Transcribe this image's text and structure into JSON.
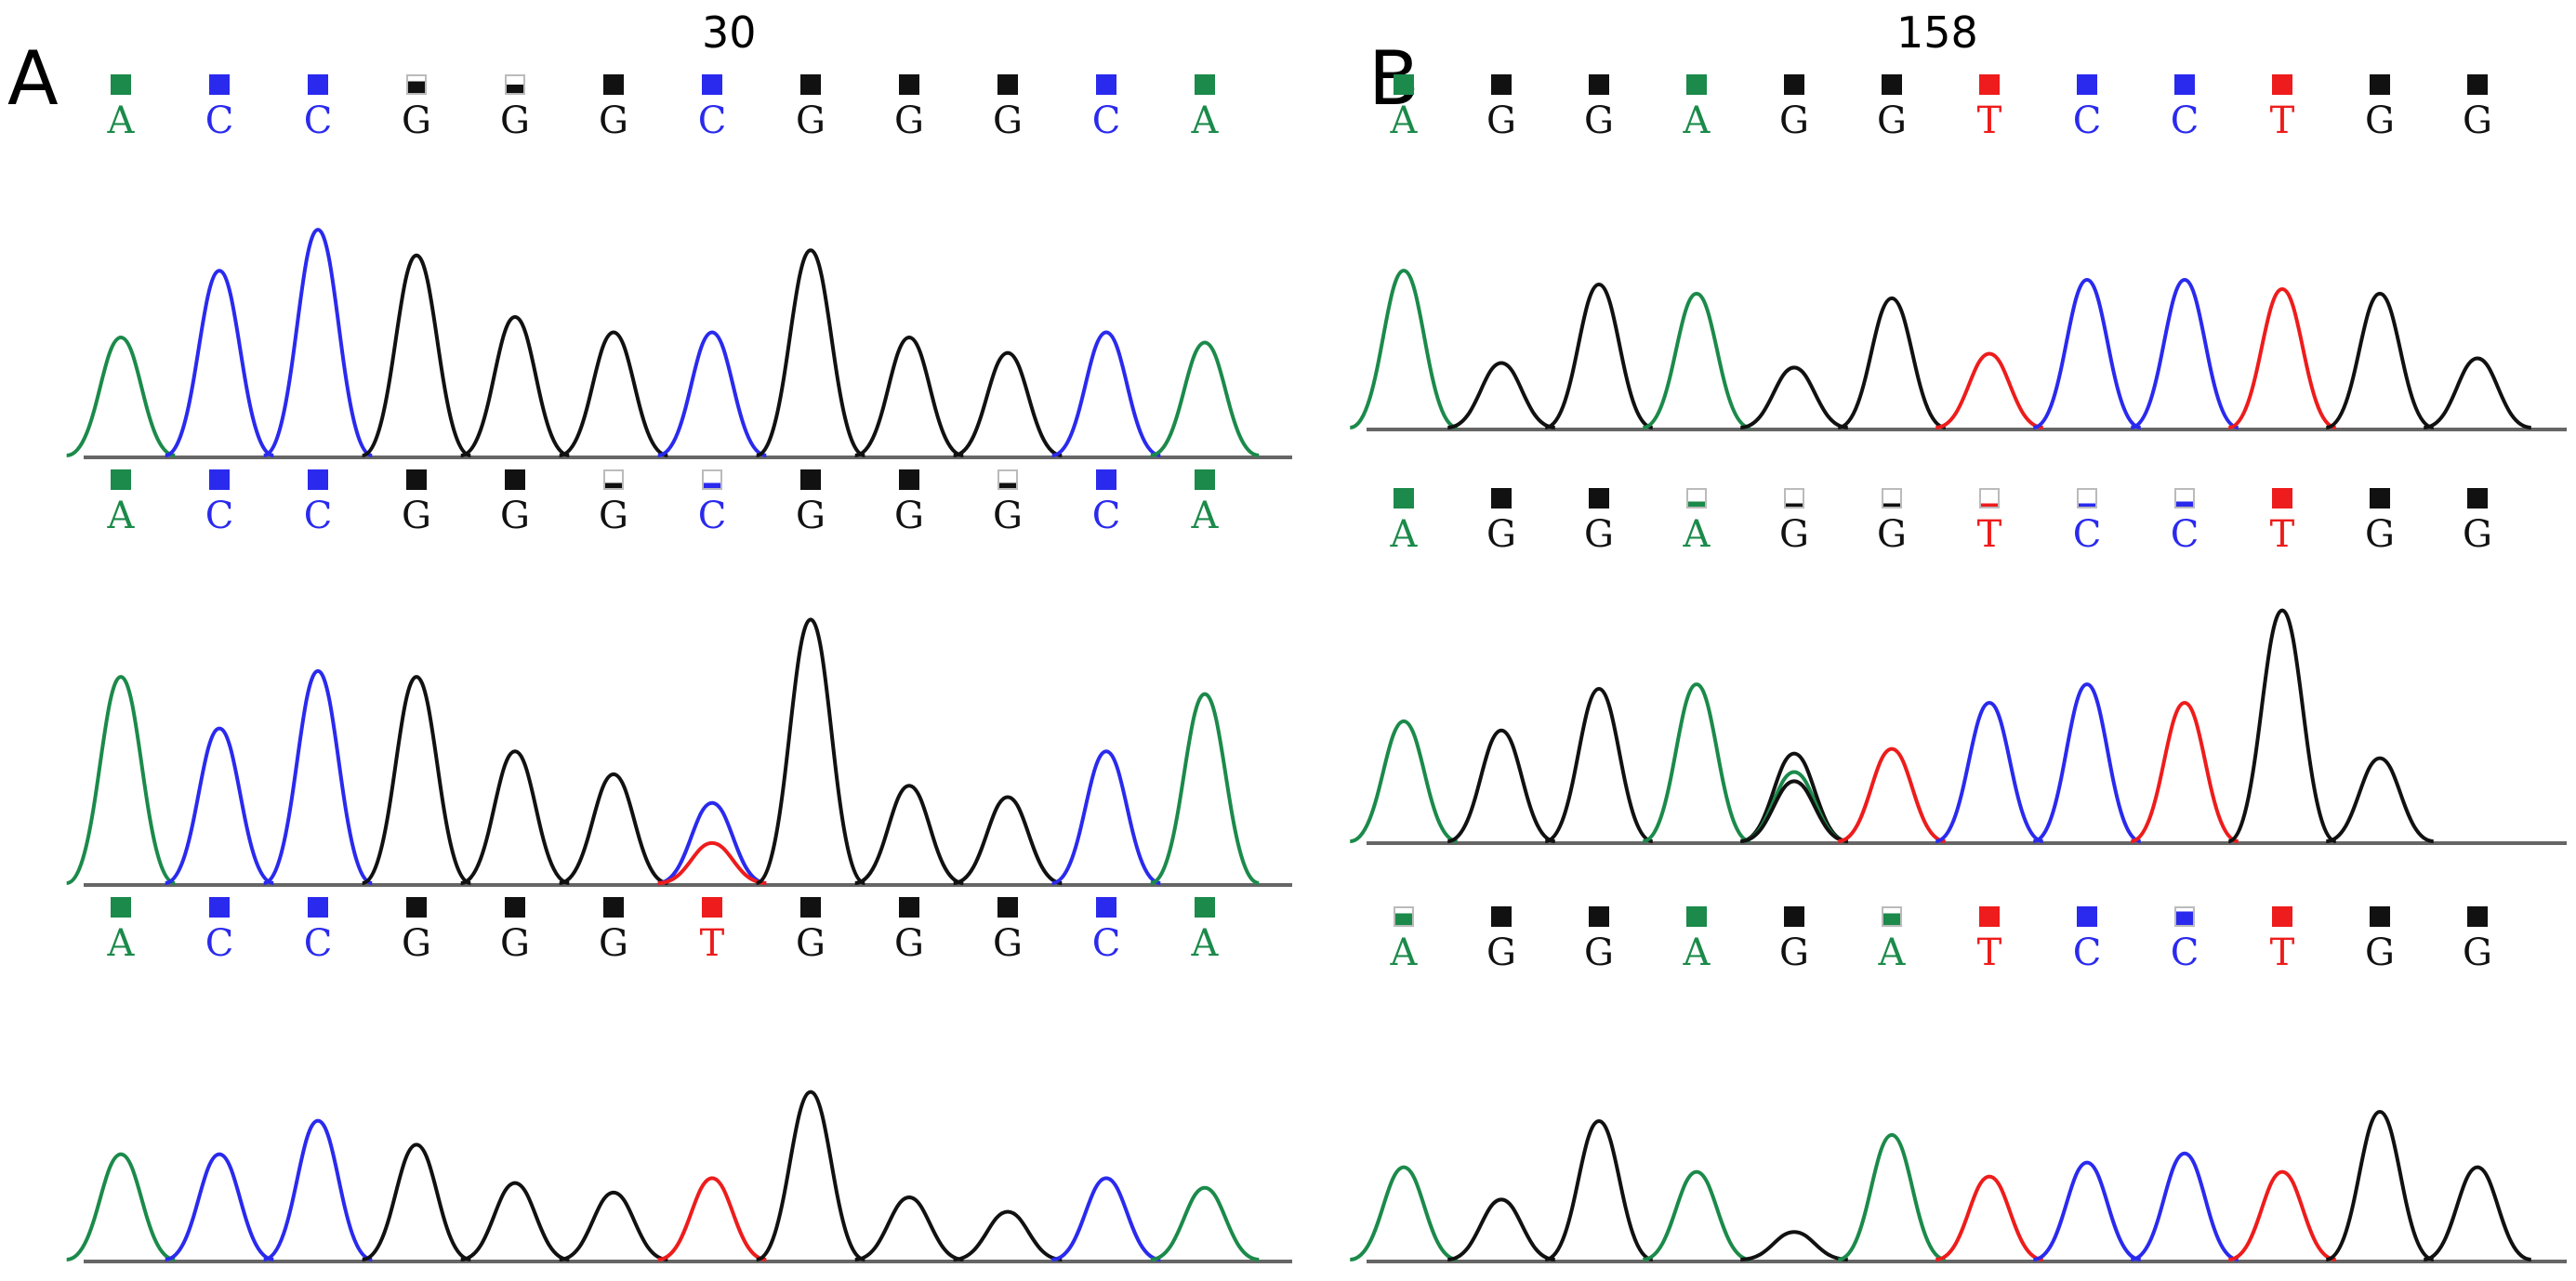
{
  "colors": {
    "A": "#1b8a4a",
    "C": "#2a2aee",
    "G": "#111111",
    "T": "#ee1c1c",
    "baseline": "#666666"
  },
  "panels": [
    {
      "label": "A",
      "position_label": "30",
      "traces": [
        {
          "bases": [
            "A",
            "C",
            "C",
            "G",
            "G",
            "G",
            "C",
            "G",
            "G",
            "G",
            "C",
            "A"
          ],
          "quality": [
            1,
            1,
            1,
            0.7,
            0.5,
            1,
            1,
            1,
            1,
            1,
            1,
            1
          ],
          "peaks": [
            {
              "base": "A",
              "height": 0.46
            },
            {
              "base": "C",
              "height": 0.72
            },
            {
              "base": "C",
              "height": 0.88
            },
            {
              "base": "G",
              "height": 0.78
            },
            {
              "base": "G",
              "height": 0.54
            },
            {
              "base": "G",
              "height": 0.48
            },
            {
              "base": "C",
              "height": 0.48
            },
            {
              "base": "G",
              "height": 0.8
            },
            {
              "base": "G",
              "height": 0.46
            },
            {
              "base": "G",
              "height": 0.4
            },
            {
              "base": "C",
              "height": 0.48
            },
            {
              "base": "A",
              "height": 0.44
            }
          ]
        },
        {
          "bases": [
            "A",
            "C",
            "C",
            "G",
            "G",
            "G",
            "C",
            "G",
            "G",
            "G",
            "C",
            "A"
          ],
          "quality": [
            1,
            1,
            1,
            1,
            1,
            0.3,
            0.3,
            1,
            1,
            0.3,
            1,
            1
          ],
          "peaks": [
            {
              "base": "A",
              "height": 0.72
            },
            {
              "base": "C",
              "height": 0.54
            },
            {
              "base": "C",
              "height": 0.74
            },
            {
              "base": "G",
              "height": 0.72
            },
            {
              "base": "G",
              "height": 0.46
            },
            {
              "base": "G",
              "height": 0.38
            },
            {
              "base": "C",
              "height": 0.28
            },
            {
              "base": "T",
              "height": 0.14,
              "offset": 0
            },
            {
              "base": "G",
              "height": 0.92
            },
            {
              "base": "G",
              "height": 0.34
            },
            {
              "base": "G",
              "height": 0.3
            },
            {
              "base": "C",
              "height": 0.46
            },
            {
              "base": "A",
              "height": 0.66
            }
          ]
        },
        {
          "bases": [
            "A",
            "C",
            "C",
            "G",
            "G",
            "G",
            "T",
            "G",
            "G",
            "G",
            "C",
            "A"
          ],
          "quality": [
            1,
            1,
            1,
            1,
            1,
            1,
            1,
            1,
            1,
            1,
            1,
            1
          ],
          "peaks": [
            {
              "base": "A",
              "height": 0.44
            },
            {
              "base": "C",
              "height": 0.44
            },
            {
              "base": "C",
              "height": 0.58
            },
            {
              "base": "G",
              "height": 0.48
            },
            {
              "base": "G",
              "height": 0.32
            },
            {
              "base": "G",
              "height": 0.28
            },
            {
              "base": "T",
              "height": 0.34
            },
            {
              "base": "G",
              "height": 0.7
            },
            {
              "base": "G",
              "height": 0.26
            },
            {
              "base": "G",
              "height": 0.2
            },
            {
              "base": "C",
              "height": 0.34
            },
            {
              "base": "A",
              "height": 0.3
            }
          ]
        }
      ]
    },
    {
      "label": "B",
      "position_label": "158",
      "traces": [
        {
          "bases": [
            "A",
            "G",
            "G",
            "A",
            "G",
            "G",
            "T",
            "C",
            "C",
            "T",
            "G",
            "G"
          ],
          "quality": [
            1,
            1,
            1,
            1,
            1,
            1,
            1,
            1,
            1,
            1,
            1,
            1
          ],
          "peaks": [
            {
              "base": "A",
              "height": 0.68
            },
            {
              "base": "G",
              "height": 0.28
            },
            {
              "base": "G",
              "height": 0.62
            },
            {
              "base": "A",
              "height": 0.58
            },
            {
              "base": "G",
              "height": 0.26
            },
            {
              "base": "G",
              "height": 0.56
            },
            {
              "base": "T",
              "height": 0.32
            },
            {
              "base": "C",
              "height": 0.64
            },
            {
              "base": "C",
              "height": 0.64
            },
            {
              "base": "T",
              "height": 0.6
            },
            {
              "base": "G",
              "height": 0.58
            },
            {
              "base": "G",
              "height": 0.3
            }
          ]
        },
        {
          "bases": [
            "A",
            "G",
            "G",
            "A",
            "G",
            "G",
            "T",
            "C",
            "C",
            "T",
            "G",
            "G"
          ],
          "quality": [
            1,
            1,
            1,
            0.3,
            0.2,
            0.2,
            0.2,
            0.2,
            0.3,
            1,
            1,
            1
          ],
          "peaks": [
            {
              "base": "A",
              "height": 0.52
            },
            {
              "base": "G",
              "height": 0.48
            },
            {
              "base": "G",
              "height": 0.66
            },
            {
              "base": "A",
              "height": 0.68
            },
            {
              "base": "G",
              "height": 0.38
            },
            {
              "base": "A",
              "height": 0.3,
              "offset": 0
            },
            {
              "base": "G",
              "height": 0.26,
              "offset": 0
            },
            {
              "base": "T",
              "height": 0.4
            },
            {
              "base": "C",
              "height": 0.6
            },
            {
              "base": "C",
              "height": 0.68
            },
            {
              "base": "T",
              "height": 0.6
            },
            {
              "base": "G",
              "height": 1.0
            },
            {
              "base": "G",
              "height": 0.36
            }
          ]
        },
        {
          "bases": [
            "A",
            "G",
            "G",
            "A",
            "G",
            "A",
            "T",
            "C",
            "C",
            "T",
            "G",
            "G"
          ],
          "quality": [
            0.7,
            1,
            1,
            1,
            1,
            0.7,
            1,
            1,
            0.8,
            1,
            1,
            1
          ],
          "peaks": [
            {
              "base": "A",
              "height": 0.4
            },
            {
              "base": "G",
              "height": 0.26
            },
            {
              "base": "G",
              "height": 0.6
            },
            {
              "base": "A",
              "height": 0.38
            },
            {
              "base": "G",
              "height": 0.12
            },
            {
              "base": "A",
              "height": 0.54
            },
            {
              "base": "T",
              "height": 0.36
            },
            {
              "base": "C",
              "height": 0.42
            },
            {
              "base": "C",
              "height": 0.46
            },
            {
              "base": "T",
              "height": 0.38
            },
            {
              "base": "G",
              "height": 0.64
            },
            {
              "base": "G",
              "height": 0.4
            }
          ]
        }
      ]
    }
  ]
}
